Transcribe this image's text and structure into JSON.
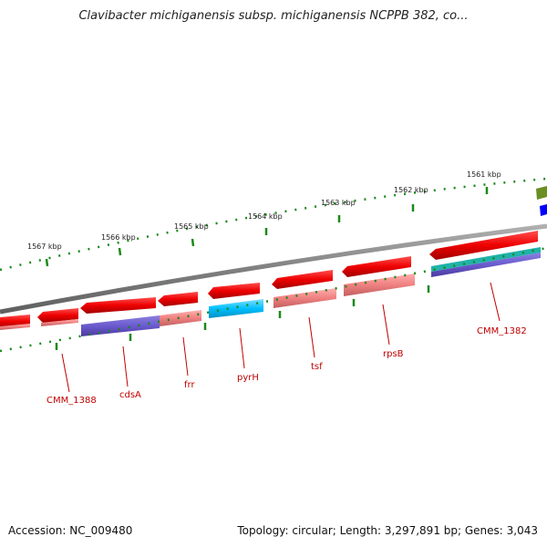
{
  "title": "Clavibacter michiganensis subsp. michiganensis NCPPB 382, co...",
  "footer": {
    "accession": "Accession: NC_009480",
    "summary": "Topology: circular; Length: 3,297,891 bp; Genes: 3,043"
  },
  "colors": {
    "backbone": "#888888",
    "tick": "#1a8a1a",
    "gene_forward": "#e80000",
    "gene_light": "#f08080",
    "cds_purple": "#6a5acd",
    "cds_cyan": "#00bfff",
    "label": "#c00000",
    "olive": "#6b8e23",
    "blue": "#0000ff"
  },
  "scale_labels": [
    "1567 kbp",
    "1566 kbp",
    "1565 kbp",
    "1564 kbp",
    "1563 kbp",
    "1562 kbp",
    "1561 kbp"
  ],
  "genes": [
    {
      "id": "CMM_1388",
      "label": "CMM_1388"
    },
    {
      "id": "cdsA",
      "label": "cdsA"
    },
    {
      "id": "frr",
      "label": "frr"
    },
    {
      "id": "pyrH",
      "label": "pyrH"
    },
    {
      "id": "tsf",
      "label": "tsf"
    },
    {
      "id": "rpsB",
      "label": "rpsB"
    },
    {
      "id": "CMM_1382",
      "label": "CMM_1382"
    }
  ]
}
